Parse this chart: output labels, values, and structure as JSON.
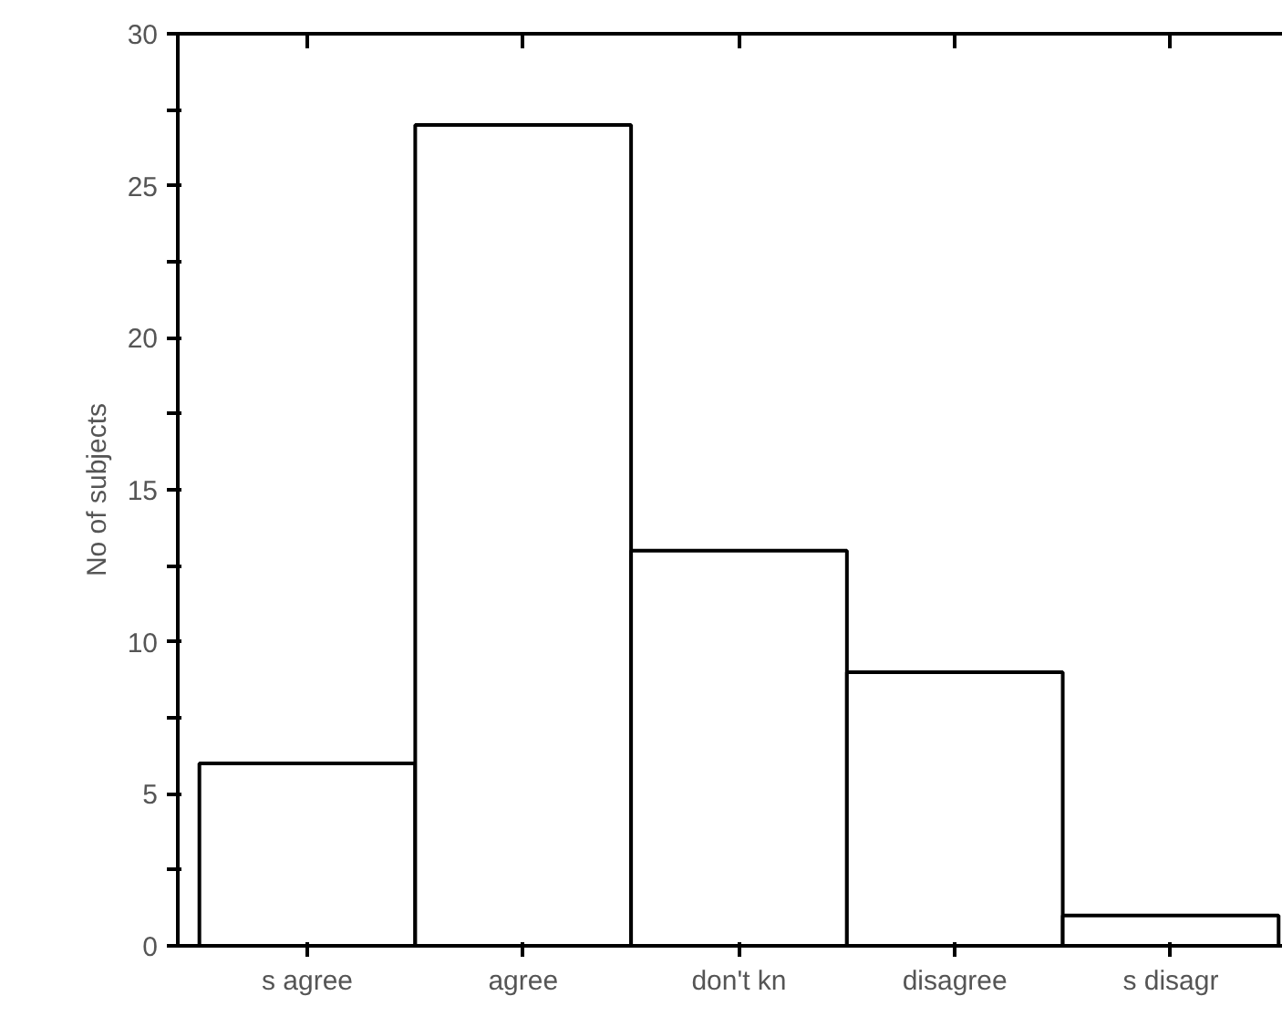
{
  "chart_data": {
    "type": "bar",
    "ylabel": "No of subjects",
    "categories": [
      "s agree",
      "agree",
      "don't kn",
      "disagree",
      "s disagr"
    ],
    "values": [
      6,
      27,
      13,
      9,
      1
    ],
    "color": "#ffffff",
    "ylim": [
      0,
      30
    ],
    "yticks": [
      0,
      {
        "value": 2.5,
        "label": null
      },
      5,
      {
        "value": 7.5,
        "label": null
      },
      10,
      {
        "value": 12.5,
        "label": null
      },
      15,
      {
        "value": 17.5,
        "label": null
      },
      20,
      {
        "value": 22.5,
        "label": null
      },
      25,
      {
        "value": 27.5,
        "label": null
      },
      30
    ],
    "grid": false
  }
}
